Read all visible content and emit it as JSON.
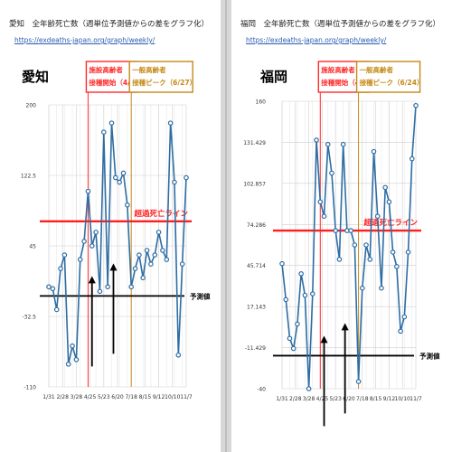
{
  "left": {
    "header_title": "愛知　全年齢死亡数（週単位予測値からの差をグラフ化）",
    "header_url": "https://exdeaths-japan.org/graph/weekly/",
    "region_label": "愛知",
    "annotation_1": [
      "施設高齢者",
      "接種開始（4/12）"
    ],
    "annotation_2": [
      "一般高齢者",
      "接種ピーク（6/27）"
    ],
    "excess_line_label": "超過死亡ライン",
    "prediction_label": "予測値"
  },
  "right": {
    "header_title": "福岡　全年齢死亡数（週単位予測値からの差をグラフ化）",
    "header_url": "https://exdeaths-japan.org/graph/weekly/",
    "region_label": "福岡",
    "annotation_1": [
      "施設高齢者",
      "接種開始（4/12）"
    ],
    "annotation_2": [
      "一般高齢者",
      "接種ピーク（6/24）"
    ],
    "excess_line_label": "超過死亡ライン",
    "prediction_label": "予測値"
  },
  "colors": {
    "series": "#2e6da4",
    "excess_line": "#ff1e1e",
    "annotation_red": "#ff2a2a",
    "annotation_gold": "#c48a16",
    "prediction_line": "#000000"
  },
  "chart_data": [
    {
      "type": "line",
      "title": "愛知　全年齢死亡数（週単位予測値からの差をグラフ化）",
      "x_tick_labels": [
        "1/31",
        "2/28",
        "3/28",
        "4/25",
        "5/23",
        "6/20",
        "7/18",
        "8/15",
        "9/12",
        "10/10",
        "11/7"
      ],
      "y_tick_labels": [
        "200",
        "122.5",
        "45",
        "-32.5",
        "-110"
      ],
      "ylim": [
        -110,
        200
      ],
      "values": [
        0,
        -2,
        -25,
        20,
        35,
        -85,
        -65,
        -80,
        30,
        50,
        105,
        45,
        60,
        -5,
        170,
        0,
        180,
        120,
        115,
        125,
        90,
        0,
        20,
        35,
        10,
        40,
        25,
        35,
        60,
        40,
        30,
        180,
        115,
        -75,
        25,
        120
      ],
      "excess_line_value": 72,
      "prediction_value": -10,
      "vline_red_index": 10,
      "vline_gold_index": 21,
      "arrows_at_index": [
        11,
        16
      ]
    },
    {
      "type": "line",
      "title": "福岡　全年齢死亡数（週単位予測値からの差をグラフ化）",
      "x_tick_labels": [
        "1/31",
        "2/28",
        "3/28",
        "4/25",
        "5/23",
        "6/20",
        "7/18",
        "8/15",
        "9/12",
        "10/10",
        "11/7"
      ],
      "y_tick_labels": [
        "160",
        "131.429",
        "102.857",
        "74.286",
        "45.714",
        "17.143",
        "-11.429",
        "-40"
      ],
      "ylim": [
        -40,
        160
      ],
      "values": [
        47,
        22,
        -5,
        -12,
        5,
        40,
        25,
        -40,
        26,
        133,
        90,
        80,
        130,
        110,
        70,
        50,
        130,
        70,
        70,
        60,
        -35,
        30,
        60,
        50,
        125,
        80,
        30,
        100,
        90,
        55,
        45,
        0,
        10,
        55,
        120,
        157
      ],
      "excess_line_value": 70,
      "prediction_value": -17,
      "vline_red_index": 10,
      "vline_gold_index": 20,
      "arrows_at_index": [
        11,
        16
      ]
    }
  ]
}
